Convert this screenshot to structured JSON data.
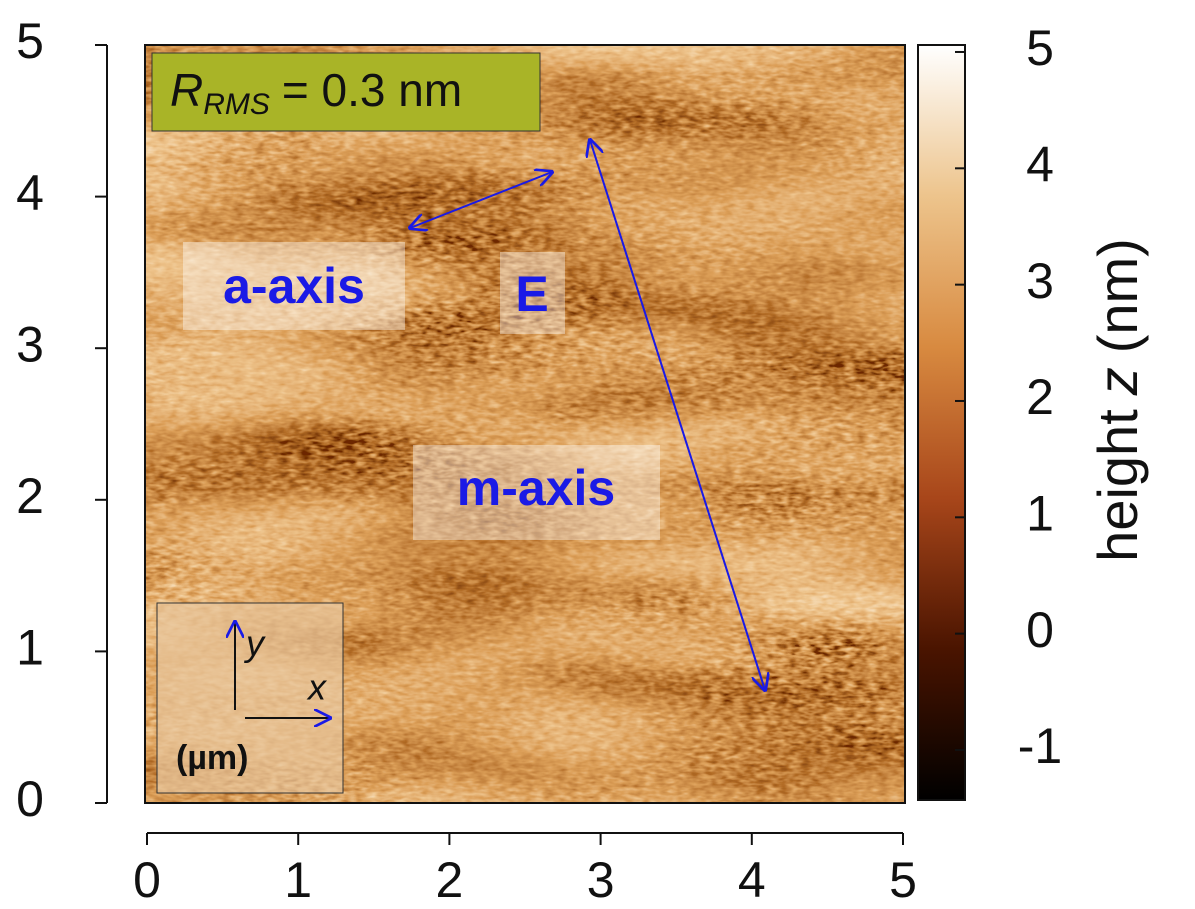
{
  "chart_data": {
    "type": "image",
    "xlim": [
      0,
      5
    ],
    "xticks": [
      0,
      1,
      2,
      3,
      4,
      5
    ],
    "ylim": [
      0,
      5
    ],
    "yticks": [
      0,
      1,
      2,
      3,
      4,
      5
    ],
    "colorbar": {
      "label": [
        "height",
        "z",
        "(nm)"
      ],
      "lim": [
        -1.43,
        5.06
      ],
      "ticks": [
        -1,
        0,
        1,
        2,
        3,
        4,
        5
      ],
      "colors": [
        "#000000",
        "#4a1400",
        "#a8461a",
        "#d88a40",
        "#edc48c",
        "#ffffff"
      ]
    },
    "annotations": {
      "rms": {
        "symbol": "R",
        "subscript": "RMS",
        "text": "= 0.3 nm"
      },
      "a_axis": "a-axis",
      "e": "E",
      "m_axis": "m-axis",
      "inset": {
        "y": "y",
        "x": "x",
        "unit": "(µm)"
      }
    }
  }
}
